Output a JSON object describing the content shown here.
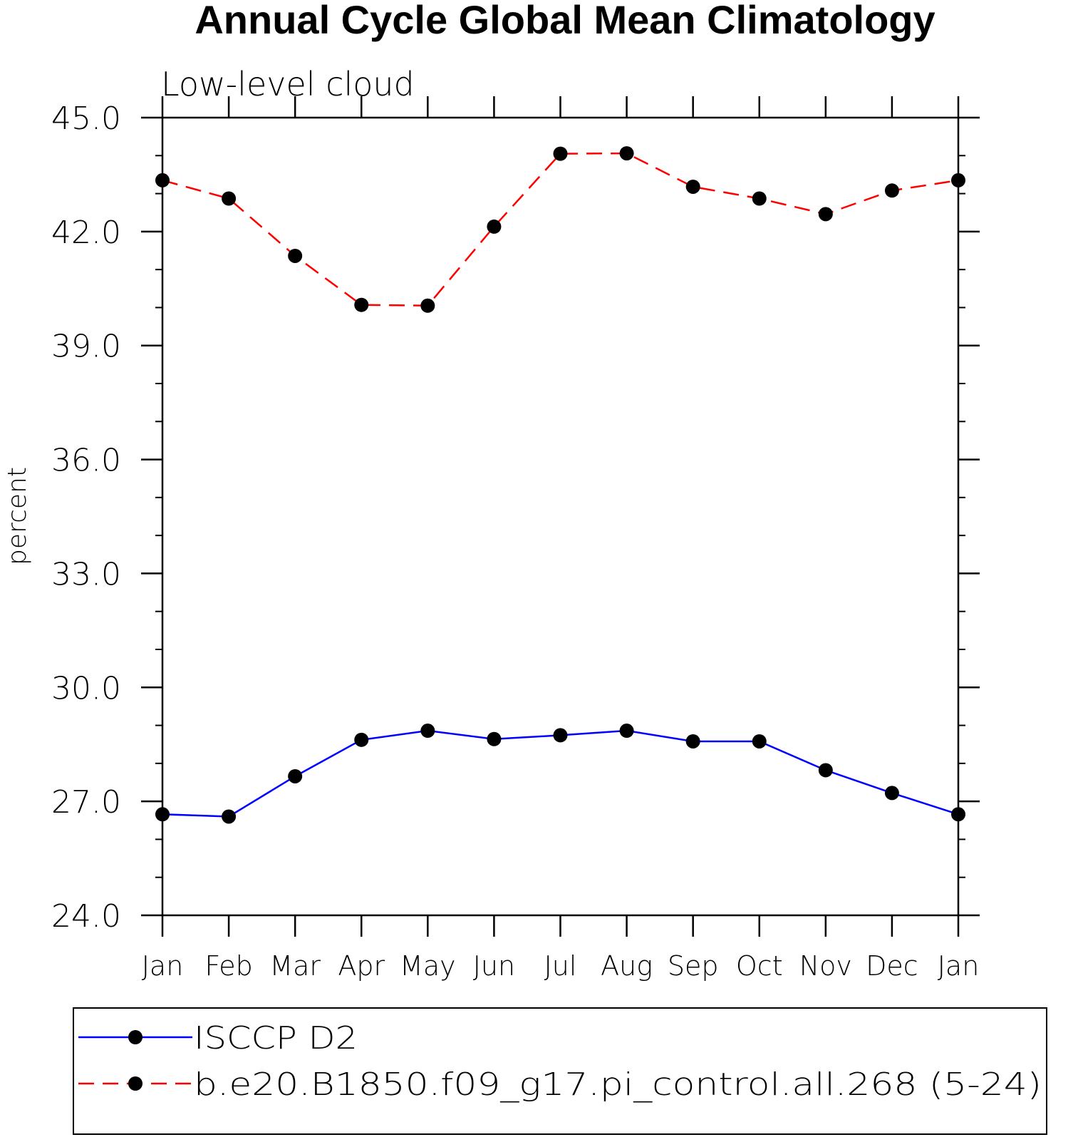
{
  "chart_data": {
    "type": "line",
    "title": "Annual Cycle Global Mean Climatology",
    "subtitle": "Low-level cloud",
    "ylabel": "percent",
    "xlabel": "",
    "categories": [
      "Jan",
      "Feb",
      "Mar",
      "Apr",
      "May",
      "Jun",
      "Jul",
      "Aug",
      "Sep",
      "Oct",
      "Nov",
      "Dec",
      "Jan"
    ],
    "ylim": [
      24.0,
      45.0
    ],
    "yticks": [
      "24.0",
      "27.0",
      "30.0",
      "33.0",
      "36.0",
      "39.0",
      "42.0",
      "45.0"
    ],
    "grid": false,
    "legend_placement": "bottom",
    "series": [
      {
        "name": "ISCCP D2",
        "color": "#0000ff",
        "line_style": "solid",
        "marker": "filled-circle",
        "values": [
          26.66,
          26.6,
          27.66,
          28.62,
          28.86,
          28.64,
          28.74,
          28.86,
          28.58,
          28.58,
          27.82,
          27.22,
          26.66
        ]
      },
      {
        "name": "b.e20.B1850.f09_g17.pi_control.all.268 (5-24)",
        "color": "#ff0000",
        "line_style": "dashed",
        "marker": "filled-circle",
        "values": [
          43.35,
          42.87,
          41.36,
          40.07,
          40.05,
          42.13,
          44.05,
          44.06,
          43.18,
          42.87,
          42.46,
          43.08,
          43.35
        ]
      }
    ]
  }
}
